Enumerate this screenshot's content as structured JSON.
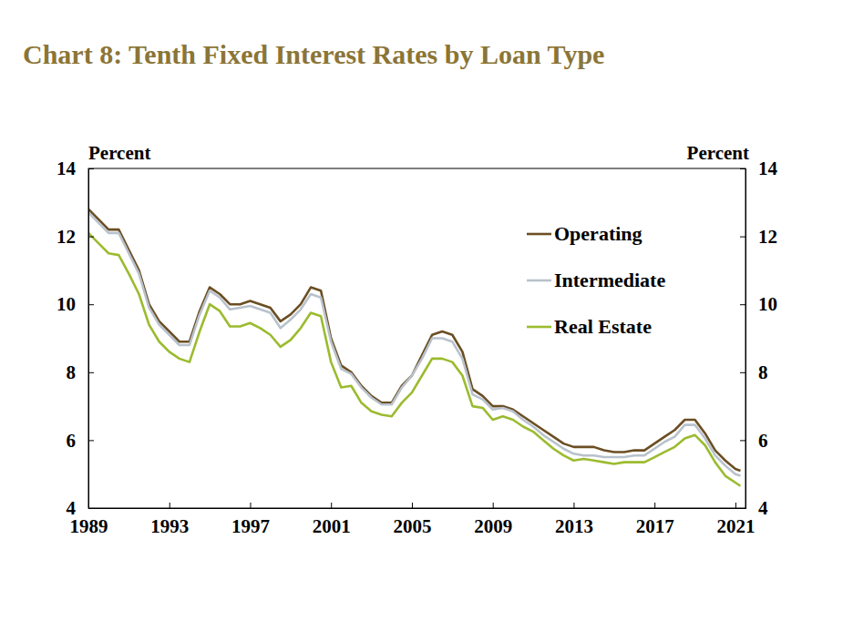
{
  "chart_data": {
    "type": "line",
    "title": "Chart 8: Tenth Fixed Interest Rates by Loan Type",
    "y_label": "Percent",
    "y2_label": "Percent",
    "x": [
      1989,
      1989.5,
      1990,
      1990.5,
      1991,
      1991.5,
      1992,
      1992.5,
      1993,
      1993.5,
      1994,
      1994.5,
      1995,
      1995.5,
      1996,
      1996.5,
      1997,
      1997.5,
      1998,
      1998.5,
      1999,
      1999.5,
      2000,
      2000.5,
      2001,
      2001.5,
      2002,
      2002.5,
      2003,
      2003.5,
      2004,
      2004.5,
      2005,
      2005.5,
      2006,
      2006.5,
      2007,
      2007.5,
      2008,
      2008.5,
      2009,
      2009.5,
      2010,
      2010.5,
      2011,
      2011.5,
      2012,
      2012.5,
      2013,
      2013.5,
      2014,
      2014.5,
      2015,
      2015.5,
      2016,
      2016.5,
      2017,
      2017.5,
      2018,
      2018.5,
      2019,
      2019.5,
      2020,
      2020.5,
      2021,
      2021.25
    ],
    "series": [
      {
        "name": "Operating",
        "color": "#6b4e23",
        "values": [
          12.8,
          12.5,
          12.2,
          12.2,
          11.6,
          11.0,
          10.0,
          9.5,
          9.2,
          8.9,
          8.9,
          9.8,
          10.5,
          10.3,
          10.0,
          10.0,
          10.1,
          10.0,
          9.9,
          9.5,
          9.7,
          10.0,
          10.5,
          10.4,
          9.0,
          8.2,
          8.0,
          7.6,
          7.3,
          7.1,
          7.1,
          7.6,
          7.9,
          8.5,
          9.1,
          9.2,
          9.1,
          8.6,
          7.5,
          7.3,
          7.0,
          7.0,
          6.9,
          6.7,
          6.5,
          6.3,
          6.1,
          5.9,
          5.8,
          5.8,
          5.8,
          5.7,
          5.65,
          5.65,
          5.7,
          5.7,
          5.9,
          6.1,
          6.3,
          6.6,
          6.6,
          6.2,
          5.7,
          5.4,
          5.15,
          5.1
        ]
      },
      {
        "name": "Intermediate",
        "color": "#b8c2cc",
        "values": [
          12.7,
          12.4,
          12.1,
          12.1,
          11.5,
          10.9,
          9.9,
          9.4,
          9.1,
          8.8,
          8.8,
          9.7,
          10.4,
          10.2,
          9.85,
          9.9,
          9.95,
          9.85,
          9.75,
          9.3,
          9.55,
          9.85,
          10.3,
          10.2,
          8.9,
          8.1,
          7.95,
          7.55,
          7.25,
          7.05,
          7.05,
          7.55,
          7.9,
          8.4,
          9.0,
          9.0,
          8.9,
          8.4,
          7.35,
          7.2,
          6.9,
          6.95,
          6.85,
          6.6,
          6.4,
          6.15,
          5.95,
          5.75,
          5.6,
          5.55,
          5.55,
          5.5,
          5.5,
          5.5,
          5.55,
          5.55,
          5.75,
          5.95,
          6.1,
          6.45,
          6.45,
          6.05,
          5.55,
          5.25,
          5.0,
          4.95
        ]
      },
      {
        "name": "Real Estate",
        "color": "#9bbb2f",
        "values": [
          12.1,
          11.8,
          11.5,
          11.45,
          10.9,
          10.3,
          9.4,
          8.9,
          8.6,
          8.4,
          8.3,
          9.2,
          10.0,
          9.8,
          9.35,
          9.35,
          9.45,
          9.3,
          9.1,
          8.75,
          8.95,
          9.3,
          9.75,
          9.65,
          8.3,
          7.55,
          7.6,
          7.1,
          6.85,
          6.75,
          6.7,
          7.1,
          7.4,
          7.9,
          8.4,
          8.4,
          8.3,
          7.9,
          7.0,
          6.95,
          6.6,
          6.7,
          6.6,
          6.4,
          6.25,
          6.0,
          5.75,
          5.55,
          5.4,
          5.45,
          5.4,
          5.35,
          5.3,
          5.35,
          5.35,
          5.35,
          5.5,
          5.65,
          5.8,
          6.05,
          6.15,
          5.85,
          5.35,
          4.95,
          4.75,
          4.65
        ]
      }
    ],
    "xlim": [
      1989,
      2021.5
    ],
    "xticks": [
      1989,
      1993,
      1997,
      2001,
      2005,
      2009,
      2013,
      2017,
      2021
    ],
    "ylim": [
      4,
      14
    ],
    "yticks": [
      4,
      6,
      8,
      10,
      12,
      14
    ],
    "y2lim": [
      4,
      14
    ],
    "y2ticks": [
      4,
      6,
      8,
      10,
      12,
      14
    ],
    "grid": false,
    "legend": "upper right"
  }
}
